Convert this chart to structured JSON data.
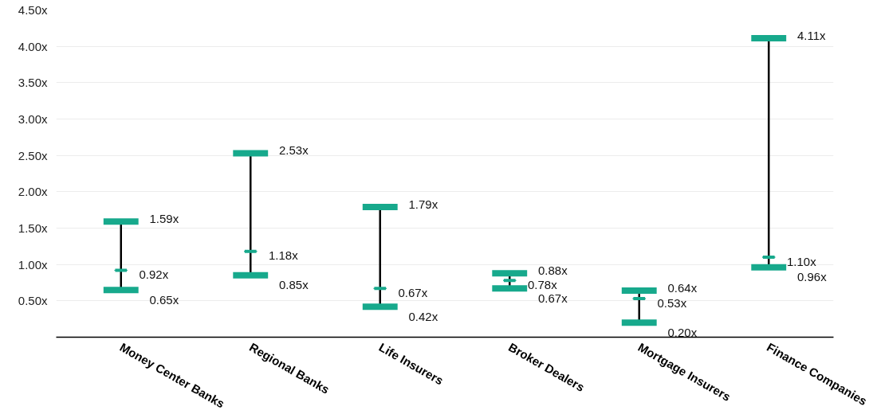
{
  "chart_data": {
    "type": "box",
    "categories": [
      "Money Center Banks",
      "Regional Banks",
      "Life Insurers",
      "Broker Dealers",
      "Mortgage Insurers",
      "Finance Companies"
    ],
    "series": [
      {
        "color": "#17a98c",
        "boxes": [
          {
            "low": 0.65,
            "q1": 0.92,
            "median": 0.92,
            "q3": 0.92,
            "high": 1.59
          },
          {
            "low": 0.85,
            "q1": 1.18,
            "median": 1.18,
            "q3": 1.18,
            "high": 2.53
          },
          {
            "low": 0.42,
            "q1": 0.67,
            "median": 0.67,
            "q3": 0.67,
            "high": 1.79
          },
          {
            "low": 0.67,
            "q1": 0.78,
            "median": 0.78,
            "q3": 0.78,
            "high": 0.88
          },
          {
            "low": 0.2,
            "q1": 0.53,
            "median": 0.53,
            "q3": 0.53,
            "high": 0.64
          },
          {
            "low": 0.96,
            "q1": 1.1,
            "median": 1.1,
            "q3": 1.1,
            "high": 4.11
          }
        ],
        "value_labels": [
          [
            "0.65x",
            "0.92x",
            "1.59x"
          ],
          [
            "0.85x",
            "1.18x",
            "2.53x"
          ],
          [
            "0.42x",
            "0.67x",
            "1.79x"
          ],
          [
            "0.67x",
            "0.78x",
            "0.88x"
          ],
          [
            "0.20x",
            "0.53x",
            "0.64x"
          ],
          [
            "0.96x",
            "1.10x",
            "4.11x"
          ]
        ]
      }
    ],
    "ylim": [
      0,
      4.5
    ],
    "yticks": [
      {
        "value": 0.5,
        "label": "0.50x"
      },
      {
        "value": 1.0,
        "label": "1.00x"
      },
      {
        "value": 1.5,
        "label": "1.50x"
      },
      {
        "value": 2.0,
        "label": "2.00x"
      },
      {
        "value": 2.5,
        "label": "2.50x"
      },
      {
        "value": 3.0,
        "label": "3.00x"
      },
      {
        "value": 3.5,
        "label": "3.50x"
      },
      {
        "value": 4.0,
        "label": "4.00x"
      },
      {
        "value": 4.5,
        "label": "4.50x"
      }
    ],
    "grid": "y"
  }
}
